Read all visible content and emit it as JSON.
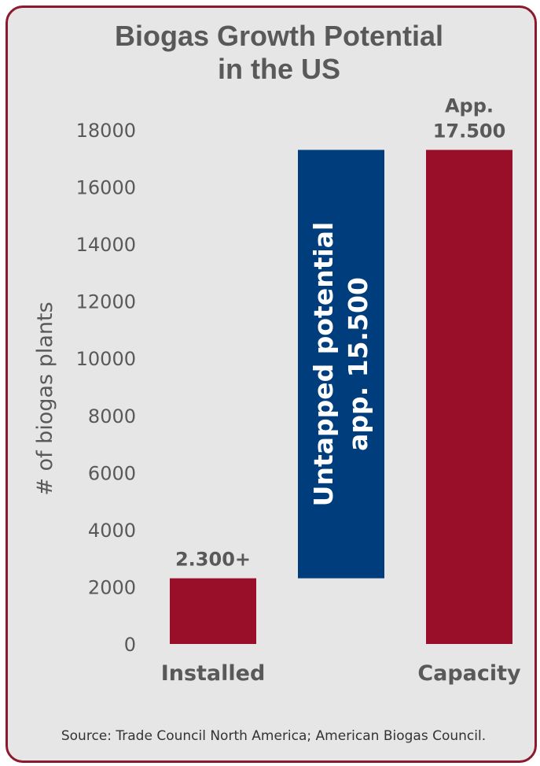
{
  "chart_data": {
    "type": "bar",
    "title_lines": [
      "Biogas Growth Potential",
      "in the US"
    ],
    "ylabel": "# of biogas plants",
    "ylim": [
      0,
      18000
    ],
    "yticks": [
      0,
      2000,
      4000,
      6000,
      8000,
      10000,
      12000,
      14000,
      16000,
      18000
    ],
    "grid": false,
    "legend": "none",
    "bars": [
      {
        "category": "Installed",
        "base": 0,
        "value": 2300,
        "label_lines": [
          "2.300+"
        ],
        "color": "#990f2a"
      },
      {
        "category": "",
        "base": 2300,
        "value": 17300,
        "inner_label_lines": [
          "Untapped potential",
          "app. 15.500"
        ],
        "color": "#003d7d"
      },
      {
        "category": "Capacity",
        "base": 0,
        "value": 17300,
        "label_lines": [
          "App.",
          "17.500"
        ],
        "color": "#990f2a"
      }
    ]
  },
  "source": "Source: Trade Council North America; American Biogas Council.",
  "colors": {
    "frame": "#8b1a2e",
    "card_bg": "#e6e6e6",
    "text": "#595959",
    "axis_text": "#595959"
  }
}
